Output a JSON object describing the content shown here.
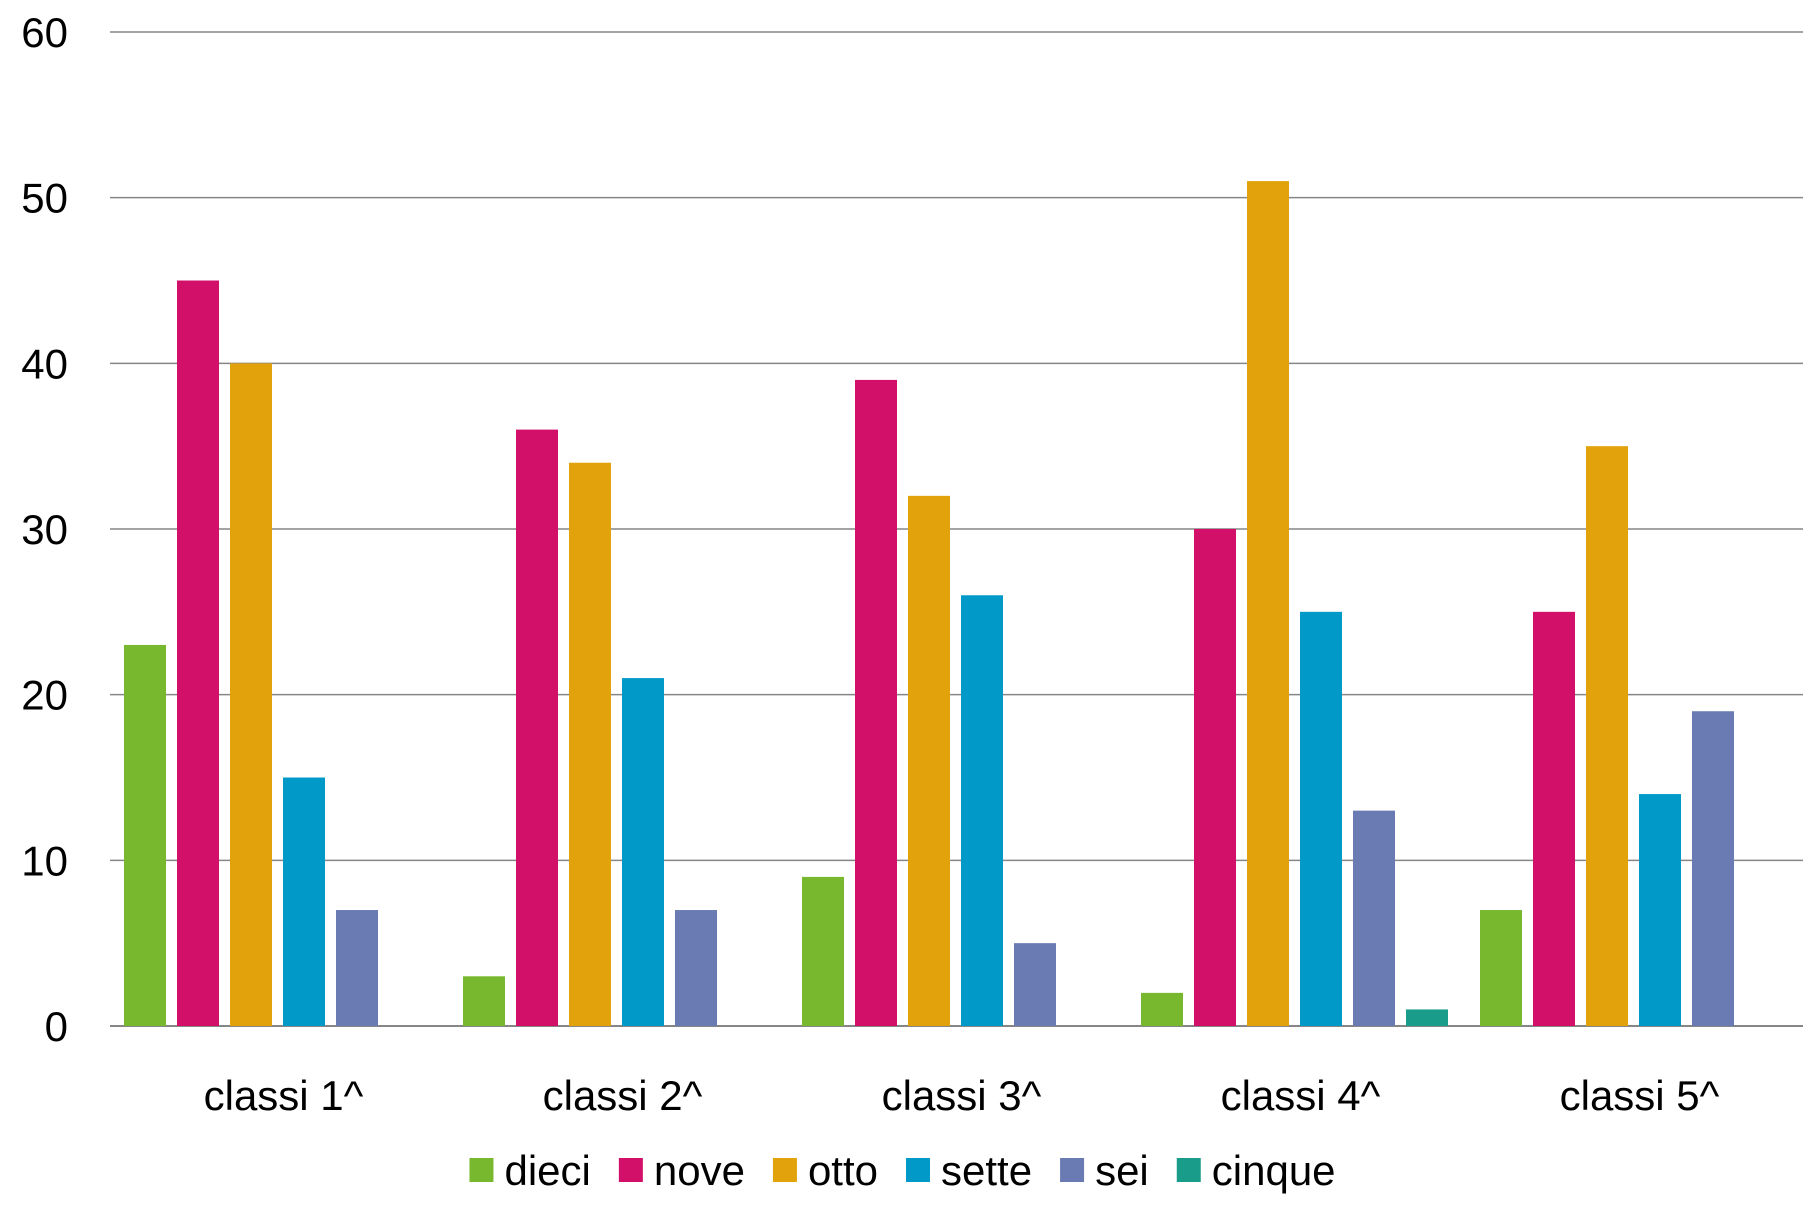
{
  "chart_data": {
    "type": "bar",
    "categories": [
      "classi 1^",
      "classi 2^",
      "classi 3^",
      "classi 4^",
      "classi 5^"
    ],
    "series": [
      {
        "name": "dieci",
        "color": "#77b82f",
        "values": [
          23,
          3,
          9,
          2,
          7
        ]
      },
      {
        "name": "nove",
        "color": "#d2106a",
        "values": [
          45,
          36,
          39,
          30,
          25
        ]
      },
      {
        "name": "otto",
        "color": "#e2a20c",
        "values": [
          40,
          34,
          32,
          51,
          35
        ]
      },
      {
        "name": "sette",
        "color": "#0099c8",
        "values": [
          15,
          21,
          26,
          25,
          14
        ]
      },
      {
        "name": "sei",
        "color": "#6a7bb4",
        "values": [
          7,
          7,
          5,
          13,
          19
        ]
      },
      {
        "name": "cinque",
        "color": "#1a9c8a",
        "values": [
          0,
          0,
          0,
          1,
          0
        ]
      }
    ],
    "ylim": [
      0,
      60
    ],
    "yticks": [
      0,
      10,
      20,
      30,
      40,
      50,
      60
    ],
    "grid": true,
    "legend_position": "bottom",
    "title": "",
    "xlabel": "",
    "ylabel": ""
  }
}
